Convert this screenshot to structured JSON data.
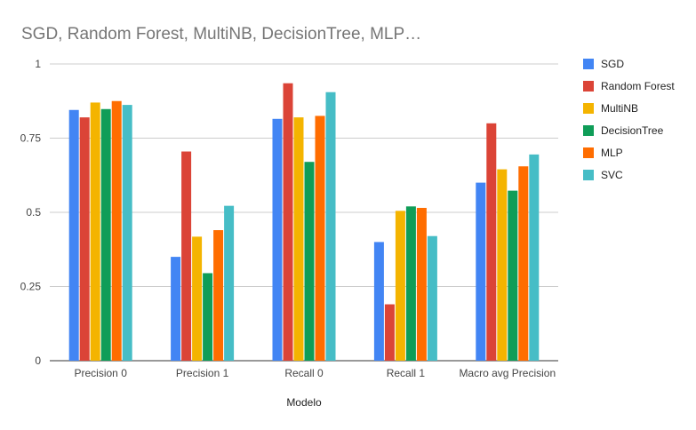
{
  "chart_data": {
    "type": "bar",
    "title": "SGD, Random Forest, MultiNB, DecisionTree, MLP…",
    "xlabel": "Modelo",
    "ylabel": "",
    "ylim": [
      0,
      1
    ],
    "yticks": [
      0,
      0.25,
      0.5,
      0.75,
      1
    ],
    "ytick_labels": [
      "0",
      "0.25",
      "0.5",
      "0.75",
      "1"
    ],
    "grid": true,
    "legend_position": "right",
    "categories": [
      "Precision 0",
      "Precision 1",
      "Recall 0",
      "Recall 1",
      "Macro avg Precision"
    ],
    "series": [
      {
        "name": "SGD",
        "color": "#4285f4",
        "values": [
          0.845,
          0.35,
          0.815,
          0.4,
          0.6
        ]
      },
      {
        "name": "Random Forest",
        "color": "#db4437",
        "values": [
          0.82,
          0.705,
          0.935,
          0.19,
          0.8
        ]
      },
      {
        "name": "MultiNB",
        "color": "#f4b400",
        "values": [
          0.87,
          0.418,
          0.82,
          0.505,
          0.645
        ]
      },
      {
        "name": "DecisionTree",
        "color": "#0f9d58",
        "values": [
          0.848,
          0.295,
          0.67,
          0.52,
          0.573
        ]
      },
      {
        "name": "MLP",
        "color": "#ff6d00",
        "values": [
          0.875,
          0.44,
          0.825,
          0.515,
          0.655
        ]
      },
      {
        "name": "SVC",
        "color": "#46bdc6",
        "values": [
          0.862,
          0.522,
          0.905,
          0.42,
          0.695
        ]
      }
    ]
  }
}
